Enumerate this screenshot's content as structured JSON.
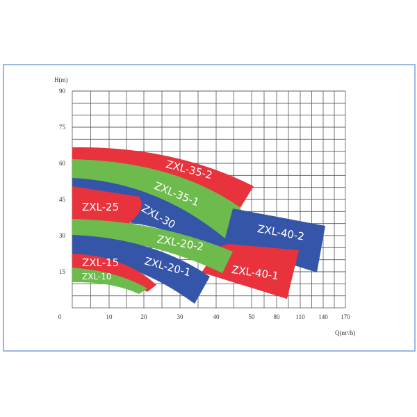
{
  "chart_data": {
    "type": "region",
    "y_label": "H(m)",
    "x_label": "Q(m³/h)",
    "ylim": [
      0,
      90
    ],
    "yticks": [
      15,
      30,
      45,
      60,
      75,
      90
    ],
    "xticks": [
      0,
      10,
      20,
      30,
      40,
      50,
      80,
      110,
      140,
      170
    ],
    "regions": [
      {
        "name": "ZXL-35-2",
        "color": "#e8323c"
      },
      {
        "name": "ZXL-35-1",
        "color": "#6cbb4c"
      },
      {
        "name": "ZXL-40-2",
        "color": "#3555a8"
      },
      {
        "name": "ZXL-40-1",
        "color": "#e8323c"
      },
      {
        "name": "ZXL-30",
        "color": "#3555a8"
      },
      {
        "name": "ZXL-25",
        "color": "#e8323c"
      },
      {
        "name": "ZXL-20-2",
        "color": "#6cbb4c"
      },
      {
        "name": "ZXL-20-1",
        "color": "#3555a8"
      },
      {
        "name": "ZXL-15",
        "color": "#e8323c"
      },
      {
        "name": "ZXL-10",
        "color": "#6cbb4c"
      }
    ]
  }
}
